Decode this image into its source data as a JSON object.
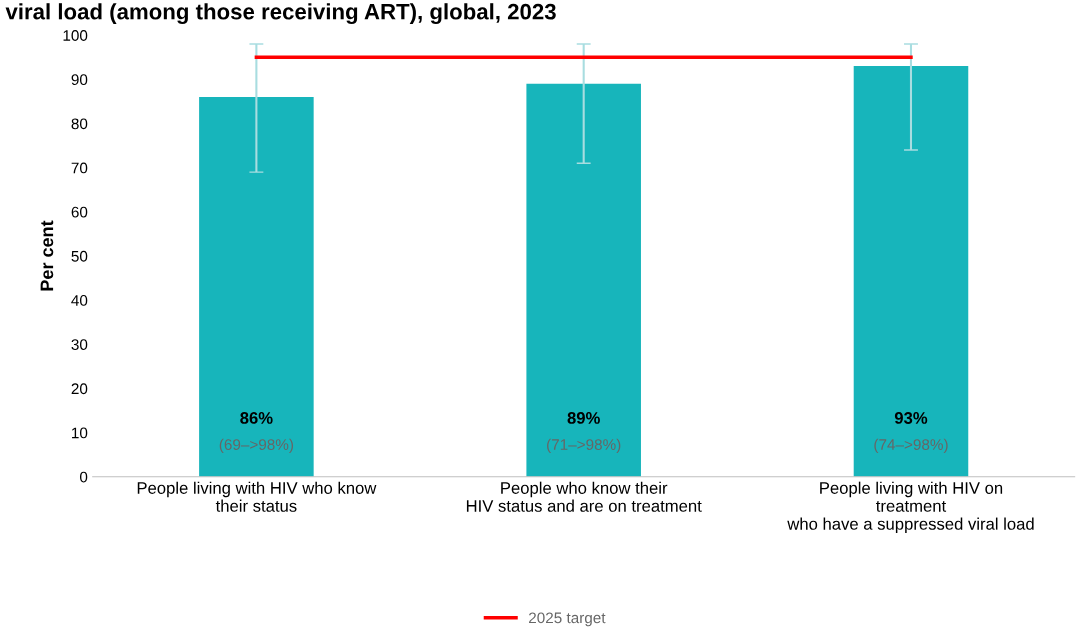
{
  "chart_data": {
    "type": "bar",
    "title": "viral load (among those receiving ART), global, 2023",
    "ylabel": "Per cent",
    "categories": [
      "People living with HIV who know\ntheir status",
      "People who know their\nHIV status and are on treatment",
      "People living with HIV on\ntreatment\nwho have a suppressed viral load"
    ],
    "series": [
      {
        "color": "#17b5bb",
        "values": [
          86,
          89,
          93
        ],
        "errors": [
          [
            69,
            98
          ],
          [
            71,
            98
          ],
          [
            74,
            98
          ]
        ],
        "value_labels": [
          "86%",
          "89%",
          "93%"
        ]
      },
      {
        "type": "line",
        "name": "2025 target",
        "color": "#ff0000",
        "values": [
          95,
          95,
          95
        ]
      }
    ],
    "annotations": [
      "(69–>98%)",
      "(71–>98%)",
      "(74–>98%)"
    ],
    "ylim": [
      0,
      100
    ],
    "yticks": [
      0,
      10,
      20,
      30,
      40,
      50,
      60,
      70,
      80,
      90,
      100
    ],
    "grid": false,
    "legend": "bottom"
  }
}
